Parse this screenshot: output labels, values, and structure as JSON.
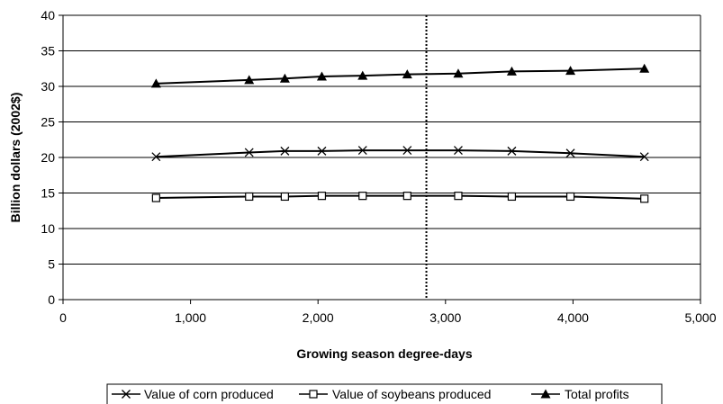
{
  "chart_data": {
    "type": "line",
    "title": "",
    "xlabel": "Growing season degree-days",
    "ylabel": "Billion dollars (2002$)",
    "xlim": [
      0,
      5000
    ],
    "ylim": [
      0,
      40
    ],
    "x_ticks": [
      0,
      1000,
      2000,
      3000,
      4000,
      5000
    ],
    "x_tick_labels": [
      "0",
      "1,000",
      "2,000",
      "3,000",
      "4,000",
      "5,000"
    ],
    "y_ticks": [
      0,
      5,
      10,
      15,
      20,
      25,
      30,
      35,
      40
    ],
    "y_tick_labels": [
      "0",
      "5",
      "10",
      "15",
      "20",
      "25",
      "30",
      "35",
      "40"
    ],
    "grid": "horizontal",
    "reference_line": {
      "x": 2850,
      "style": "dotted"
    },
    "legend_position": "bottom",
    "series": [
      {
        "name": "Value of corn produced",
        "marker": "x",
        "x": [
          730,
          1460,
          1740,
          2030,
          2350,
          2700,
          3100,
          3520,
          3980,
          4560
        ],
        "y": [
          20.1,
          20.7,
          20.9,
          20.9,
          21.0,
          21.0,
          21.0,
          20.9,
          20.6,
          20.1
        ]
      },
      {
        "name": "Value of soybeans produced",
        "marker": "square",
        "x": [
          730,
          1460,
          1740,
          2030,
          2350,
          2700,
          3100,
          3520,
          3980,
          4560
        ],
        "y": [
          14.3,
          14.5,
          14.5,
          14.6,
          14.6,
          14.6,
          14.6,
          14.5,
          14.5,
          14.2
        ]
      },
      {
        "name": "Total profits",
        "marker": "triangle",
        "x": [
          730,
          1460,
          1740,
          2030,
          2350,
          2700,
          3100,
          3520,
          3980,
          4560
        ],
        "y": [
          30.4,
          30.9,
          31.1,
          31.4,
          31.5,
          31.7,
          31.8,
          32.1,
          32.2,
          32.5
        ]
      }
    ]
  }
}
